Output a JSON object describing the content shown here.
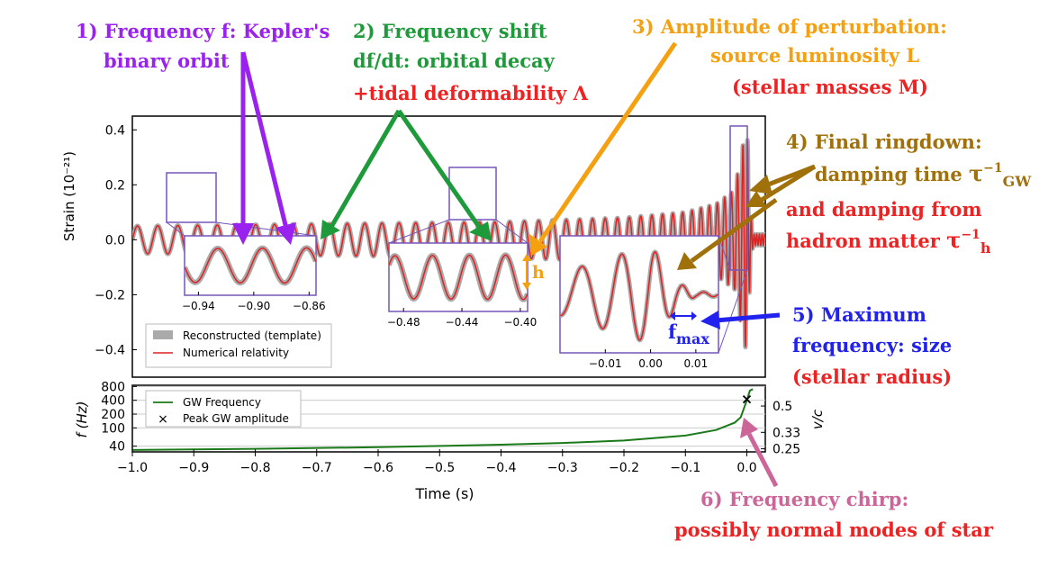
{
  "chart_data": [
    {
      "type": "line",
      "ylabel": "Strain (10⁻²¹)",
      "xlim": [
        -1.0,
        0.03
      ],
      "ylim": [
        -0.5,
        0.45
      ],
      "ytick_labels": [
        "0.4",
        "0.2",
        "0.0",
        "−0.2",
        "−0.4"
      ],
      "ytick_values": [
        0.4,
        0.2,
        0.0,
        -0.2,
        -0.4
      ],
      "legend": [
        "Reconstructed (template)",
        "Numerical relativity"
      ],
      "legend_position": "lower-left",
      "series": [
        {
          "name": "Reconstructed (template)",
          "color": "#aaaaaa",
          "x": [
            -1.0,
            -0.8,
            -0.6,
            -0.4,
            -0.2,
            -0.1,
            -0.05,
            -0.02,
            0.0,
            0.006,
            0.01
          ],
          "amplitude": [
            0.05,
            0.055,
            0.06,
            0.065,
            0.08,
            0.1,
            0.13,
            0.18,
            0.42,
            0.1,
            0.02
          ]
        },
        {
          "name": "Numerical relativity",
          "color": "#dd2222",
          "x": [
            -1.0,
            -0.8,
            -0.6,
            -0.4,
            -0.2,
            -0.1,
            -0.05,
            -0.02,
            0.0,
            0.006,
            0.01
          ],
          "amplitude": [
            0.05,
            0.055,
            0.06,
            0.065,
            0.08,
            0.1,
            0.13,
            0.18,
            0.42,
            0.1,
            0.02
          ]
        }
      ],
      "insets": [
        {
          "xtick_labels": [
            "−0.94",
            "−0.90",
            "−0.86"
          ],
          "xtick_values": [
            -0.94,
            -0.9,
            -0.86
          ],
          "xlim": [
            -0.95,
            -0.855
          ]
        },
        {
          "xtick_labels": [
            "−0.48",
            "−0.44",
            "−0.40"
          ],
          "xtick_values": [
            -0.48,
            -0.44,
            -0.4
          ],
          "xlim": [
            -0.49,
            -0.395
          ]
        },
        {
          "xtick_labels": [
            "−0.01",
            "0.00",
            "0.01"
          ],
          "xtick_values": [
            -0.01,
            0.0,
            0.01
          ],
          "xlim": [
            -0.02,
            0.015
          ]
        }
      ]
    },
    {
      "type": "line",
      "xlabel": "Time (s)",
      "ylabel": "f (Hz)",
      "right_ylabel": "v/c",
      "xlim": [
        -1.0,
        0.03
      ],
      "xtick_labels": [
        "−1.0",
        "−0.9",
        "−0.8",
        "−0.7",
        "−0.6",
        "−0.5",
        "−0.4",
        "−0.3",
        "−0.2",
        "−0.1",
        "0.0"
      ],
      "xtick_values": [
        -1.0,
        -0.9,
        -0.8,
        -0.7,
        -0.6,
        -0.5,
        -0.4,
        -0.3,
        -0.2,
        -0.1,
        0.0
      ],
      "yscale": "log",
      "ylim": [
        30,
        850
      ],
      "ytick_labels": [
        "800",
        "400",
        "200",
        "100",
        "40"
      ],
      "ytick_values": [
        800,
        400,
        200,
        100,
        40
      ],
      "right_tick_labels": [
        "0.5",
        "0.33",
        "0.25"
      ],
      "right_tick_freq_values": [
        300,
        80,
        35
      ],
      "legend": [
        "GW Frequency",
        "Peak GW amplitude"
      ],
      "legend_position": "top-left",
      "series": [
        {
          "name": "GW Frequency",
          "color": "#1a7a1a",
          "x": [
            -1.0,
            -0.8,
            -0.6,
            -0.4,
            -0.3,
            -0.2,
            -0.1,
            -0.05,
            -0.02,
            -0.01,
            0.0,
            0.005,
            0.01
          ],
          "y": [
            33,
            35,
            38,
            43,
            47,
            53,
            68,
            90,
            130,
            170,
            400,
            650,
            700
          ]
        },
        {
          "name": "Peak GW amplitude",
          "marker": "x",
          "x": [
            0.0
          ],
          "y": [
            420
          ]
        }
      ]
    }
  ],
  "annotations": {
    "a1_line1": "1) Frequency  f: Kepler's",
    "a1_line2": "binary orbit",
    "a2_line1": "2) Frequency shift",
    "a2_line2": "df/dt: orbital decay",
    "a2_line3": "+tidal deformability Λ",
    "a3_line1": "3) Amplitude of perturbation:",
    "a3_line2": "source luminosity L",
    "a3_line3": "(stellar masses M)",
    "a4_line1": "4) Final ringdown:",
    "a4_line2_pre": "damping time ",
    "a4_tau": "τ",
    "a4_sup": "−1",
    "a4_sub": "GW",
    "a4_line3": "and damping from",
    "a4_line4_pre": "hadron matter  ",
    "a4_tau2": "τ",
    "a4_sup2": "−1",
    "a4_sub2": "h",
    "a5_line1": "5) Maximum",
    "a5_line2": "frequency:  size",
    "a5_line3": "(stellar radius)",
    "a6_line1": "6) Frequency chirp:",
    "a6_line2": "possibly normal modes of star",
    "h_label": "h",
    "fmax_label": "f",
    "fmax_sub": "max"
  },
  "colors": {
    "purple": "#9922ee",
    "green": "#1e9a3a",
    "red": "#ee2222",
    "orange": "#f5a010",
    "brown": "#a0700a",
    "blue": "#2222ee",
    "pink": "#cc6699",
    "inset_box": "#7755bb"
  }
}
